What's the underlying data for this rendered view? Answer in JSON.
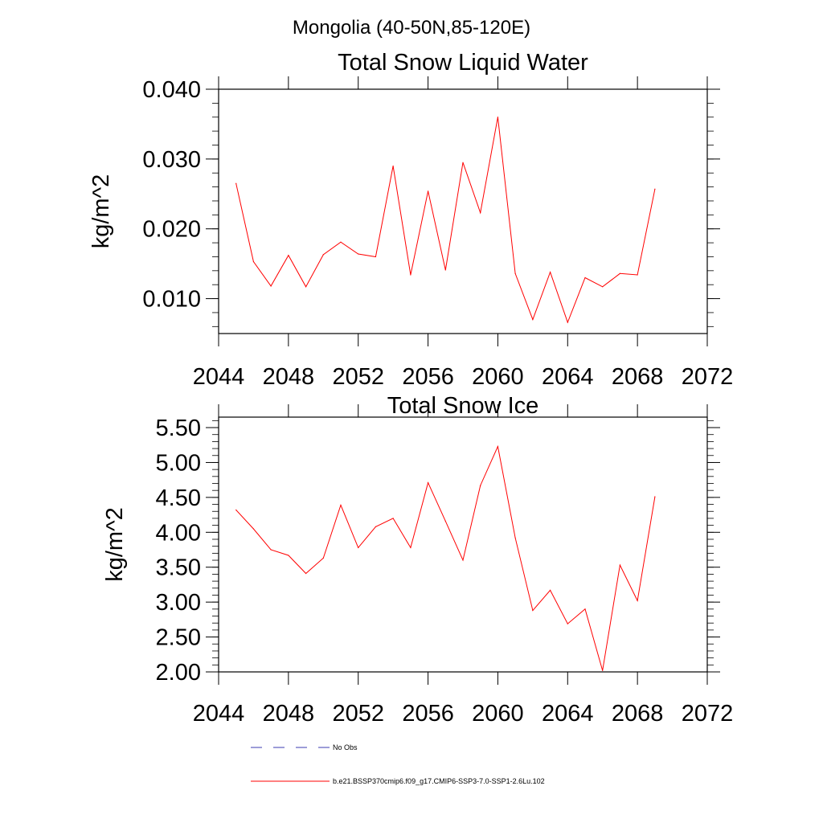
{
  "figure": {
    "title": "Mongolia (40-50N,85-120E)"
  },
  "colors": {
    "series_line": "#ff0000",
    "obs_line": "#3b3bb0",
    "axis": "#000000"
  },
  "chart_data": [
    {
      "type": "line",
      "title": "Total Snow Liquid Water",
      "xlabel": "",
      "ylabel": "kg/m^2",
      "xlim": [
        2044,
        2072
      ],
      "ylim": [
        0.005,
        0.04
      ],
      "xticks": [
        2044,
        2048,
        2052,
        2056,
        2060,
        2064,
        2068,
        2072
      ],
      "xtick_labels": [
        "2044",
        "2048",
        "2052",
        "2056",
        "2060",
        "2064",
        "2068",
        "2072"
      ],
      "yticks": [
        0.01,
        0.02,
        0.03,
        0.04
      ],
      "ytick_labels": [
        "0.010",
        "0.020",
        "0.030",
        "0.040"
      ],
      "grid": false,
      "series": [
        {
          "name": "b.e21.BSSP370cmip6.f09_g17.CMIP6-SSP3-7.0-SSP1-2.6Lu.102",
          "x": [
            2045,
            2046,
            2047,
            2048,
            2049,
            2050,
            2051,
            2052,
            2053,
            2054,
            2055,
            2056,
            2057,
            2058,
            2059,
            2060,
            2061,
            2062,
            2063,
            2064,
            2065,
            2066,
            2067,
            2068,
            2069
          ],
          "values": [
            0.0265,
            0.0153,
            0.0118,
            0.0162,
            0.0117,
            0.0163,
            0.0181,
            0.0164,
            0.016,
            0.029,
            0.0134,
            0.0254,
            0.0141,
            0.0295,
            0.0223,
            0.036,
            0.0136,
            0.007,
            0.0138,
            0.0066,
            0.013,
            0.0117,
            0.0136,
            0.0134,
            0.0257
          ]
        }
      ]
    },
    {
      "type": "line",
      "title": "Total Snow Ice",
      "xlabel": "",
      "ylabel": "kg/m^2",
      "xlim": [
        2044,
        2072
      ],
      "ylim": [
        2.0,
        5.65
      ],
      "xticks": [
        2044,
        2048,
        2052,
        2056,
        2060,
        2064,
        2068,
        2072
      ],
      "xtick_labels": [
        "2044",
        "2048",
        "2052",
        "2056",
        "2060",
        "2064",
        "2068",
        "2072"
      ],
      "yticks": [
        2.0,
        2.5,
        3.0,
        3.5,
        4.0,
        4.5,
        5.0,
        5.5
      ],
      "ytick_labels": [
        "2.00",
        "2.50",
        "3.00",
        "3.50",
        "4.00",
        "4.50",
        "5.00",
        "5.50"
      ],
      "grid": false,
      "series": [
        {
          "name": "b.e21.BSSP370cmip6.f09_g17.CMIP6-SSP3-7.0-SSP1-2.6Lu.102",
          "x": [
            2045,
            2046,
            2047,
            2048,
            2049,
            2050,
            2051,
            2052,
            2053,
            2054,
            2055,
            2056,
            2057,
            2058,
            2059,
            2060,
            2061,
            2062,
            2063,
            2064,
            2065,
            2066,
            2067,
            2068,
            2069
          ],
          "values": [
            4.32,
            4.05,
            3.75,
            3.67,
            3.41,
            3.63,
            4.39,
            3.78,
            4.08,
            4.2,
            3.78,
            4.71,
            4.16,
            3.6,
            4.67,
            5.23,
            3.92,
            2.88,
            3.17,
            2.69,
            2.9,
            2.02,
            3.53,
            3.02,
            4.51
          ]
        }
      ]
    }
  ],
  "legend": {
    "placement": "bottom",
    "entries": [
      {
        "label": "No Obs",
        "style": "dashed",
        "color": "#3b3bb0"
      },
      {
        "label": "b.e21.BSSP370cmip6.f09_g17.CMIP6-SSP3-7.0-SSP1-2.6Lu.102",
        "style": "solid",
        "color": "#ff0000"
      }
    ]
  }
}
